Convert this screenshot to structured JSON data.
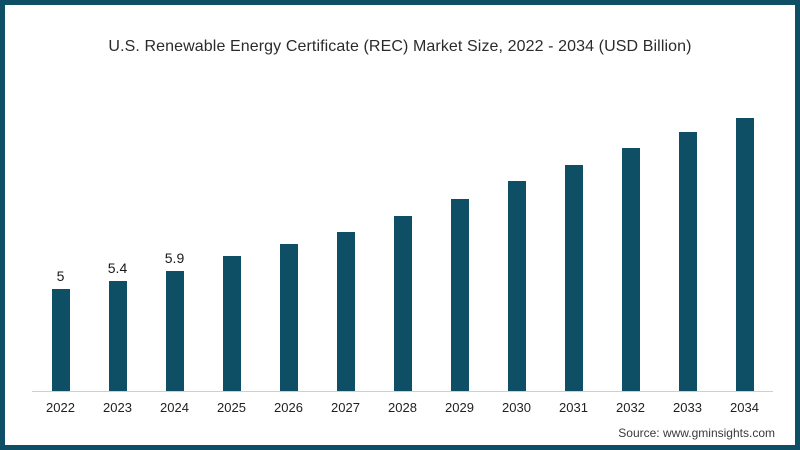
{
  "header": {
    "title": "U.S. Renewable Energy Certificate (REC) Market Size, 2022 - 2034 (USD Billion)"
  },
  "footer": {
    "source_label": "Source: www.gminsights.com"
  },
  "colors": {
    "bar": "#0f4f66",
    "frame_border": "#0f4f66",
    "axis_line": "#cfcfcf",
    "title_text": "#2b2b2b"
  },
  "chart_data": {
    "type": "bar",
    "title": "U.S. Renewable Energy Certificate (REC) Market Size, 2022 - 2034 (USD Billion)",
    "categories": [
      "2022",
      "2023",
      "2024",
      "2025",
      "2026",
      "2027",
      "2028",
      "2029",
      "2030",
      "2031",
      "2032",
      "2033",
      "2034"
    ],
    "values": [
      5,
      5.4,
      5.9,
      6.6,
      7.2,
      7.8,
      8.6,
      9.4,
      10.3,
      11.1,
      11.9,
      12.7,
      13.4
    ],
    "data_labels": [
      "5",
      "5.4",
      "5.9",
      "",
      "",
      "",
      "",
      "",
      "",
      "",
      "",
      "",
      ""
    ],
    "xlabel": "",
    "ylabel": "",
    "ylim": [
      0,
      15
    ],
    "grid": false,
    "legend": false,
    "annotation_note": "only first three bars carry visible value labels"
  }
}
